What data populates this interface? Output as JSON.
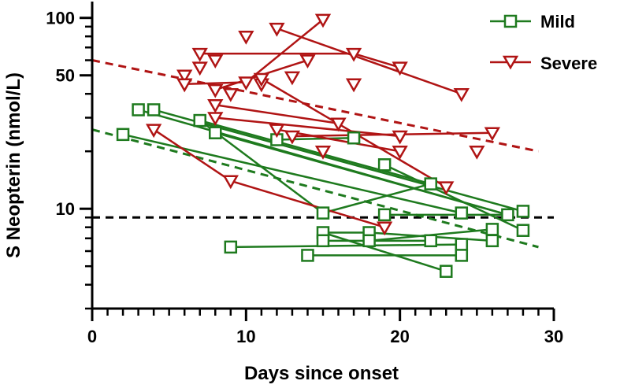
{
  "chart_data": {
    "type": "scatter",
    "xlabel": "Days since onset",
    "ylabel": "S Neopterin (nmol/L)",
    "xlim": [
      0,
      30
    ],
    "ylim": [
      3,
      115
    ],
    "yscale": "log",
    "xticks": [
      0,
      10,
      20,
      30
    ],
    "xtick_labels": [
      "0",
      "10",
      "20",
      "30"
    ],
    "yticks": [
      10,
      50,
      100
    ],
    "ytick_labels": [
      "10",
      "50",
      "100"
    ],
    "grid": false,
    "legend_position": "top-right",
    "reference_line": {
      "y": 9,
      "style": "dashed",
      "color": "#000000"
    },
    "series": [
      {
        "name": "Mild",
        "color": "#1e7a1e",
        "marker": "square",
        "points": [
          [
            2,
            24.5
          ],
          [
            3,
            33
          ],
          [
            4,
            33
          ],
          [
            7,
            29
          ],
          [
            8,
            25
          ],
          [
            12,
            23
          ],
          [
            17,
            23.5
          ],
          [
            15,
            9.5
          ],
          [
            15,
            7.5
          ],
          [
            15,
            6.8
          ],
          [
            18,
            7.5
          ],
          [
            18,
            6.8
          ],
          [
            19,
            9.3
          ],
          [
            19,
            17
          ],
          [
            22,
            13.5
          ],
          [
            22,
            6.8
          ],
          [
            24,
            9.5
          ],
          [
            24,
            6.5
          ],
          [
            24,
            5.7
          ],
          [
            9,
            6.3
          ],
          [
            14,
            5.7
          ],
          [
            23,
            4.7
          ],
          [
            26,
            7.8
          ],
          [
            26,
            6.8
          ],
          [
            27,
            9.3
          ],
          [
            28,
            9.7
          ],
          [
            28,
            7.7
          ]
        ],
        "segments": [
          [
            [
              2,
              24.5
            ],
            [
              24,
              9.5
            ]
          ],
          [
            [
              3,
              33
            ],
            [
              27,
              9.3
            ]
          ],
          [
            [
              4,
              33
            ],
            [
              28,
              9.7
            ]
          ],
          [
            [
              7,
              29
            ],
            [
              22,
              13.5
            ]
          ],
          [
            [
              8,
              25
            ],
            [
              27,
              9.3
            ]
          ],
          [
            [
              7,
              29
            ],
            [
              15,
              9.5
            ]
          ],
          [
            [
              12,
              23
            ],
            [
              17,
              23.5
            ]
          ],
          [
            [
              15,
              9.5
            ],
            [
              22,
              13.5
            ]
          ],
          [
            [
              15,
              7.5
            ],
            [
              18,
              7.5
            ]
          ],
          [
            [
              15,
              6.8
            ],
            [
              22,
              6.8
            ]
          ],
          [
            [
              14,
              5.7
            ],
            [
              24,
              5.7
            ]
          ],
          [
            [
              9,
              6.3
            ],
            [
              24,
              6.5
            ]
          ],
          [
            [
              15,
              7.5
            ],
            [
              23,
              4.7
            ]
          ],
          [
            [
              18,
              6.8
            ],
            [
              26,
              7.8
            ]
          ],
          [
            [
              19,
              9.3
            ],
            [
              27,
              9.3
            ]
          ],
          [
            [
              19,
              17
            ],
            [
              28,
              7.7
            ]
          ],
          [
            [
              18,
              7.5
            ],
            [
              26,
              6.8
            ]
          ]
        ],
        "trend": [
          [
            0,
            26
          ],
          [
            29,
            6.3
          ]
        ]
      },
      {
        "name": "Severe",
        "color": "#b01414",
        "marker": "triangle-down",
        "points": [
          [
            4,
            26
          ],
          [
            6,
            50
          ],
          [
            6,
            45
          ],
          [
            7,
            65
          ],
          [
            7,
            55
          ],
          [
            8,
            60
          ],
          [
            8,
            42
          ],
          [
            8,
            35
          ],
          [
            8,
            30
          ],
          [
            9,
            14
          ],
          [
            9,
            40
          ],
          [
            10,
            46
          ],
          [
            10,
            80
          ],
          [
            11,
            45
          ],
          [
            11,
            48
          ],
          [
            12,
            88
          ],
          [
            12,
            26
          ],
          [
            13,
            49
          ],
          [
            13,
            24
          ],
          [
            14,
            60
          ],
          [
            15,
            98
          ],
          [
            15,
            20
          ],
          [
            16,
            28
          ],
          [
            17,
            65
          ],
          [
            17,
            45
          ],
          [
            19,
            8
          ],
          [
            20,
            55
          ],
          [
            20,
            24
          ],
          [
            20,
            20
          ],
          [
            23,
            13
          ],
          [
            24,
            40
          ],
          [
            25,
            20
          ],
          [
            26,
            25
          ]
        ],
        "segments": [
          [
            [
              4,
              26
            ],
            [
              9,
              14
            ]
          ],
          [
            [
              9,
              14
            ],
            [
              19,
              8
            ]
          ],
          [
            [
              7,
              65
            ],
            [
              17,
              65
            ]
          ],
          [
            [
              17,
              65
            ],
            [
              20,
              55
            ]
          ],
          [
            [
              10,
              46
            ],
            [
              15,
              98
            ]
          ],
          [
            [
              12,
              88
            ],
            [
              24,
              40
            ]
          ],
          [
            [
              6,
              45
            ],
            [
              10,
              46
            ]
          ],
          [
            [
              8,
              42
            ],
            [
              14,
              60
            ]
          ],
          [
            [
              11,
              48
            ],
            [
              23,
              13
            ]
          ],
          [
            [
              8,
              35
            ],
            [
              16,
              28
            ]
          ],
          [
            [
              8,
              30
            ],
            [
              20,
              24
            ]
          ],
          [
            [
              13,
              24
            ],
            [
              26,
              25
            ]
          ],
          [
            [
              12,
              26
            ],
            [
              20,
              20
            ]
          ]
        ],
        "trend": [
          [
            0,
            60
          ],
          [
            29,
            20
          ]
        ]
      }
    ]
  }
}
